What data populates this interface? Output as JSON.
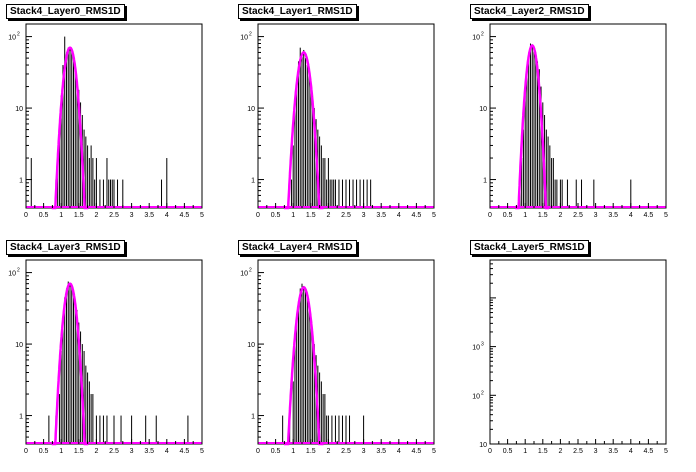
{
  "colors": {
    "histogram": "#000000",
    "fit": "#ff00ff",
    "frame": "#000000"
  },
  "chart_data": [
    {
      "type": "histogram",
      "title": "Stack4_Layer0_RMS1D",
      "xlim": [
        0,
        5
      ],
      "x_ticks": [
        "0",
        "0.5",
        "1",
        "1.5",
        "2",
        "2.5",
        "3",
        "3.5",
        "4",
        "4.5",
        "5"
      ],
      "y_scale": "log",
      "ylim": [
        0.4,
        150
      ],
      "y_ticks": [
        {
          "base": "1",
          "exp": ""
        },
        {
          "base": "10",
          "exp": ""
        },
        {
          "base": "10",
          "exp": "2"
        }
      ],
      "fit": {
        "mean": 1.25,
        "sigma": 0.13,
        "peak": 70
      },
      "bins": [
        [
          0.15,
          2
        ],
        [
          0.85,
          1
        ],
        [
          0.9,
          2
        ],
        [
          0.95,
          5
        ],
        [
          1.0,
          15
        ],
        [
          1.05,
          40
        ],
        [
          1.1,
          100
        ],
        [
          1.15,
          60
        ],
        [
          1.2,
          70
        ],
        [
          1.25,
          72
        ],
        [
          1.3,
          60
        ],
        [
          1.35,
          45
        ],
        [
          1.4,
          35
        ],
        [
          1.45,
          25
        ],
        [
          1.5,
          18
        ],
        [
          1.55,
          12
        ],
        [
          1.6,
          8
        ],
        [
          1.65,
          5
        ],
        [
          1.7,
          4
        ],
        [
          1.75,
          3
        ],
        [
          1.8,
          2
        ],
        [
          1.85,
          3
        ],
        [
          1.9,
          2
        ],
        [
          1.95,
          1
        ],
        [
          2.0,
          2
        ],
        [
          2.1,
          1
        ],
        [
          2.2,
          1
        ],
        [
          2.3,
          2
        ],
        [
          2.35,
          1
        ],
        [
          2.4,
          1
        ],
        [
          2.45,
          1
        ],
        [
          2.5,
          1
        ],
        [
          2.6,
          1
        ],
        [
          2.75,
          1
        ],
        [
          3.85,
          1
        ],
        [
          4.0,
          2
        ]
      ]
    },
    {
      "type": "histogram",
      "title": "Stack4_Layer1_RMS1D",
      "xlim": [
        0,
        5
      ],
      "x_ticks": [
        "0",
        "0.5",
        "1",
        "1.5",
        "2",
        "2.5",
        "3",
        "3.5",
        "4",
        "4.5",
        "5"
      ],
      "y_scale": "log",
      "ylim": [
        0.4,
        150
      ],
      "y_ticks": [
        {
          "base": "1",
          "exp": ""
        },
        {
          "base": "10",
          "exp": ""
        },
        {
          "base": "10",
          "exp": "2"
        }
      ],
      "fit": {
        "mean": 1.3,
        "sigma": 0.14,
        "peak": 60
      },
      "bins": [
        [
          0.95,
          1
        ],
        [
          1.0,
          3
        ],
        [
          1.05,
          10
        ],
        [
          1.1,
          25
        ],
        [
          1.15,
          45
        ],
        [
          1.2,
          70
        ],
        [
          1.25,
          55
        ],
        [
          1.3,
          65
        ],
        [
          1.35,
          50
        ],
        [
          1.4,
          40
        ],
        [
          1.45,
          30
        ],
        [
          1.5,
          20
        ],
        [
          1.55,
          15
        ],
        [
          1.6,
          10
        ],
        [
          1.65,
          7
        ],
        [
          1.7,
          5
        ],
        [
          1.75,
          4
        ],
        [
          1.8,
          3
        ],
        [
          1.85,
          2
        ],
        [
          1.9,
          2
        ],
        [
          1.95,
          1
        ],
        [
          2.0,
          2
        ],
        [
          2.05,
          1
        ],
        [
          2.1,
          1
        ],
        [
          2.15,
          1
        ],
        [
          2.2,
          1
        ],
        [
          2.3,
          1
        ],
        [
          2.4,
          1
        ],
        [
          2.5,
          1
        ],
        [
          2.6,
          1
        ],
        [
          2.7,
          1
        ],
        [
          2.8,
          1
        ],
        [
          2.9,
          1
        ],
        [
          3.0,
          1
        ],
        [
          3.1,
          1
        ],
        [
          3.2,
          1
        ]
      ]
    },
    {
      "type": "histogram",
      "title": "Stack4_Layer2_RMS1D",
      "xlim": [
        0,
        5
      ],
      "x_ticks": [
        "0",
        "0.5",
        "1",
        "1.5",
        "2",
        "2.5",
        "3",
        "3.5",
        "4",
        "4.5",
        "5"
      ],
      "y_scale": "log",
      "ylim": [
        0.4,
        150
      ],
      "y_ticks": [
        {
          "base": "1",
          "exp": ""
        },
        {
          "base": "10",
          "exp": ""
        },
        {
          "base": "10",
          "exp": "2"
        }
      ],
      "fit": {
        "mean": 1.2,
        "sigma": 0.12,
        "peak": 75
      },
      "bins": [
        [
          0.85,
          1
        ],
        [
          0.9,
          2
        ],
        [
          0.95,
          5
        ],
        [
          1.0,
          15
        ],
        [
          1.05,
          35
        ],
        [
          1.1,
          60
        ],
        [
          1.15,
          80
        ],
        [
          1.2,
          78
        ],
        [
          1.25,
          70
        ],
        [
          1.3,
          60
        ],
        [
          1.35,
          45
        ],
        [
          1.4,
          35
        ],
        [
          1.45,
          20
        ],
        [
          1.5,
          12
        ],
        [
          1.55,
          8
        ],
        [
          1.6,
          5
        ],
        [
          1.65,
          4
        ],
        [
          1.7,
          3
        ],
        [
          1.75,
          2
        ],
        [
          1.8,
          2
        ],
        [
          1.85,
          1
        ],
        [
          1.9,
          1
        ],
        [
          2.0,
          1
        ],
        [
          2.05,
          1
        ],
        [
          2.2,
          1
        ],
        [
          2.45,
          1
        ],
        [
          2.6,
          1
        ],
        [
          2.95,
          1
        ],
        [
          4.0,
          1
        ]
      ]
    },
    {
      "type": "histogram",
      "title": "Stack4_Layer3_RMS1D",
      "xlim": [
        0,
        5
      ],
      "x_ticks": [
        "0",
        "0.5",
        "1",
        "1.5",
        "2",
        "2.5",
        "3",
        "3.5",
        "4",
        "4.5",
        "5"
      ],
      "y_scale": "log",
      "ylim": [
        0.4,
        150
      ],
      "y_ticks": [
        {
          "base": "1",
          "exp": ""
        },
        {
          "base": "10",
          "exp": ""
        },
        {
          "base": "10",
          "exp": "2"
        }
      ],
      "fit": {
        "mean": 1.25,
        "sigma": 0.13,
        "peak": 70
      },
      "bins": [
        [
          0.65,
          1
        ],
        [
          0.85,
          1
        ],
        [
          0.95,
          2
        ],
        [
          1.0,
          8
        ],
        [
          1.05,
          20
        ],
        [
          1.1,
          45
        ],
        [
          1.15,
          60
        ],
        [
          1.2,
          75
        ],
        [
          1.25,
          70
        ],
        [
          1.3,
          65
        ],
        [
          1.35,
          50
        ],
        [
          1.4,
          40
        ],
        [
          1.45,
          30
        ],
        [
          1.5,
          20
        ],
        [
          1.55,
          15
        ],
        [
          1.6,
          10
        ],
        [
          1.65,
          8
        ],
        [
          1.7,
          5
        ],
        [
          1.75,
          4
        ],
        [
          1.8,
          3
        ],
        [
          1.85,
          2
        ],
        [
          1.9,
          2
        ],
        [
          2.0,
          1
        ],
        [
          2.1,
          1
        ],
        [
          2.2,
          1
        ],
        [
          2.3,
          1
        ],
        [
          2.5,
          1
        ],
        [
          2.7,
          1
        ],
        [
          3.0,
          1
        ],
        [
          3.4,
          1
        ],
        [
          3.7,
          1
        ],
        [
          4.6,
          1
        ]
      ]
    },
    {
      "type": "histogram",
      "title": "Stack4_Layer4_RMS1D",
      "xlim": [
        0,
        5
      ],
      "x_ticks": [
        "0",
        "0.5",
        "1",
        "1.5",
        "2",
        "2.5",
        "3",
        "3.5",
        "4",
        "4.5",
        "5"
      ],
      "y_scale": "log",
      "ylim": [
        0.4,
        150
      ],
      "y_ticks": [
        {
          "base": "1",
          "exp": ""
        },
        {
          "base": "10",
          "exp": ""
        },
        {
          "base": "10",
          "exp": "2"
        }
      ],
      "fit": {
        "mean": 1.3,
        "sigma": 0.14,
        "peak": 62
      },
      "bins": [
        [
          0.7,
          1
        ],
        [
          0.9,
          1
        ],
        [
          1.0,
          3
        ],
        [
          1.05,
          10
        ],
        [
          1.1,
          25
        ],
        [
          1.15,
          40
        ],
        [
          1.2,
          60
        ],
        [
          1.25,
          70
        ],
        [
          1.3,
          65
        ],
        [
          1.35,
          55
        ],
        [
          1.4,
          45
        ],
        [
          1.45,
          35
        ],
        [
          1.5,
          25
        ],
        [
          1.55,
          15
        ],
        [
          1.6,
          10
        ],
        [
          1.65,
          7
        ],
        [
          1.7,
          5
        ],
        [
          1.75,
          4
        ],
        [
          1.8,
          3
        ],
        [
          1.85,
          2
        ],
        [
          1.9,
          2
        ],
        [
          1.95,
          1
        ],
        [
          2.0,
          1
        ],
        [
          2.1,
          1
        ],
        [
          2.2,
          1
        ],
        [
          2.3,
          1
        ],
        [
          2.4,
          1
        ],
        [
          2.5,
          1
        ],
        [
          2.6,
          1
        ],
        [
          3.0,
          1
        ]
      ]
    },
    {
      "type": "histogram",
      "title": "Stack4_Layer5_RMS1D",
      "xlim": [
        0,
        5
      ],
      "x_ticks": [
        "0",
        "0.5",
        "1",
        "1.5",
        "2",
        "2.5",
        "3",
        "3.5",
        "4",
        "4.5",
        "5"
      ],
      "y_scale": "log",
      "ylim": [
        1,
        6000
      ],
      "y_ticks": [
        {
          "base": "10",
          "exp": ""
        },
        {
          "base": "10",
          "exp": "2"
        },
        {
          "base": "10",
          "exp": "3"
        }
      ],
      "fit": null,
      "bins": []
    }
  ]
}
